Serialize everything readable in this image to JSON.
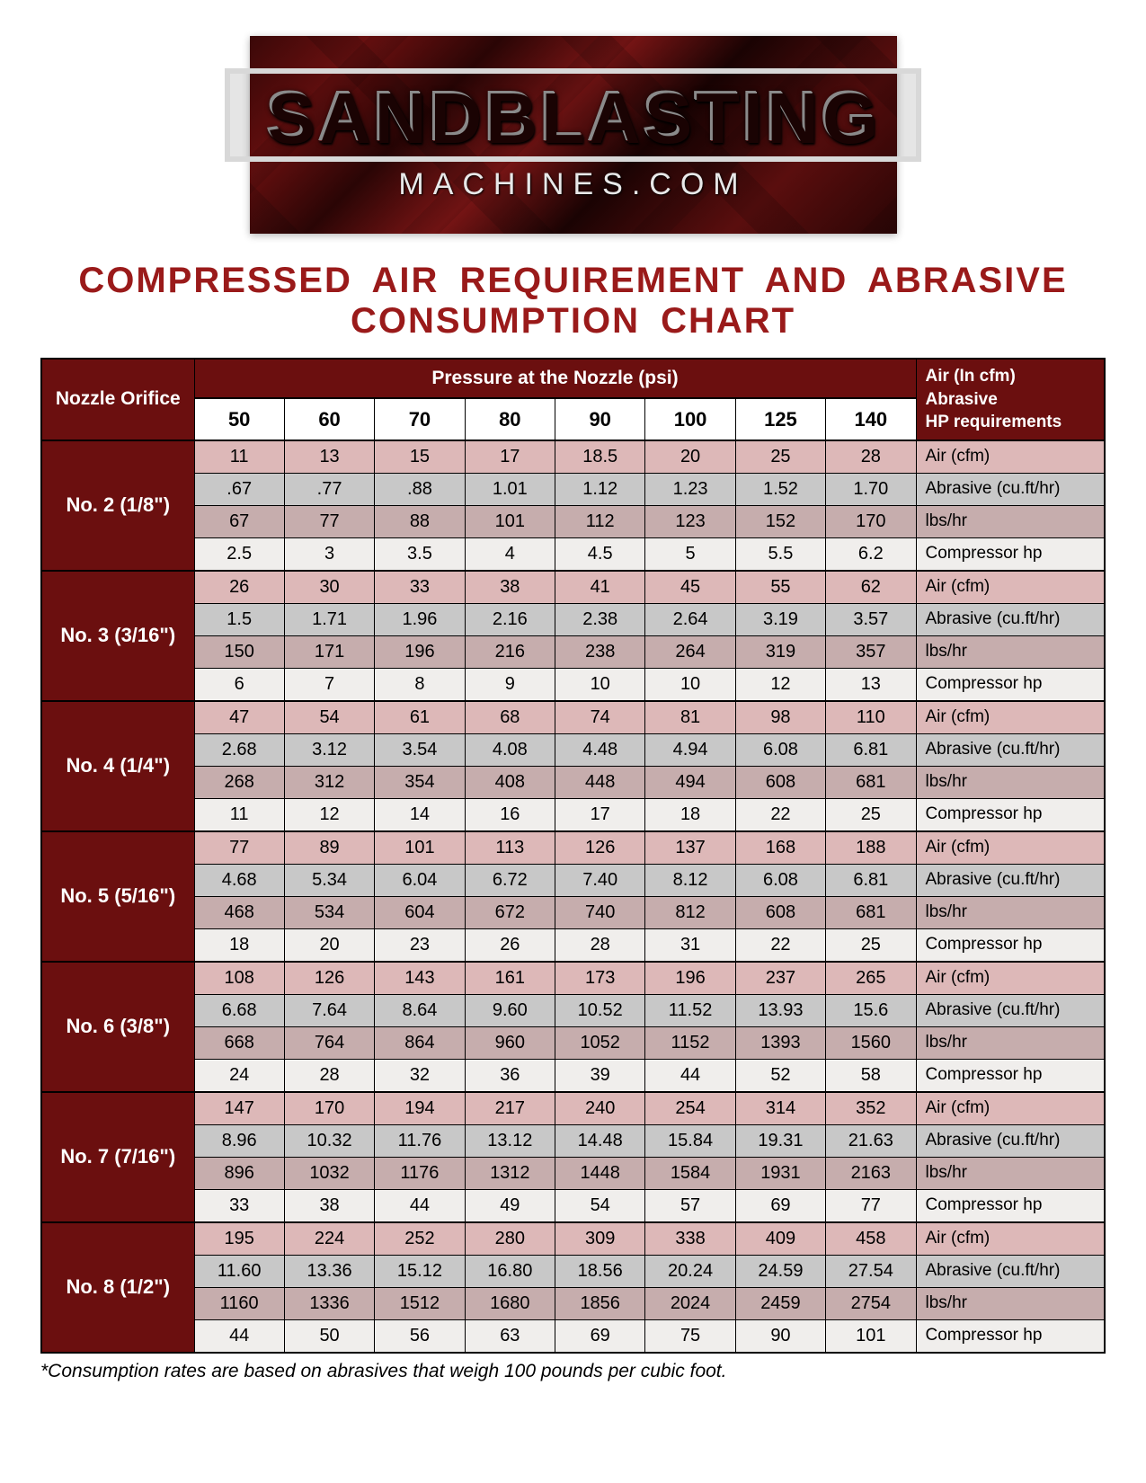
{
  "logo": {
    "title": "SANDBLASTING",
    "sub": "MACHINES.COM"
  },
  "chart_title": "COMPRESSED AIR REQUIREMENT AND ABRASIVE CONSUMPTION CHART",
  "headers": {
    "nozzle": "Nozzle Orifice",
    "pressure": "Pressure at the Nozzle (psi)",
    "right": "Air (In cfm)\nAbrasive\nHP requirements"
  },
  "psi_columns": [
    "50",
    "60",
    "70",
    "80",
    "90",
    "100",
    "125",
    "140"
  ],
  "metric_labels": [
    "Air (cfm)",
    "Abrasive (cu.ft/hr)",
    "lbs/hr",
    "Compressor hp"
  ],
  "row_colors": {
    "air": "#ddb8b8",
    "abrasive": "#c8c8c8",
    "lbs": "#c6adad",
    "hp": "#f0eeec",
    "header_bg": "#6b0f0f",
    "header_fg": "#ffffff",
    "title_color": "#9a1a1a",
    "border": "#000000"
  },
  "typography": {
    "title_font": "Impact",
    "title_size_pt": 30,
    "body_font": "Arial",
    "cell_size_pt": 15
  },
  "groups": [
    {
      "label": "No. 2 (1/8\")",
      "rows": [
        [
          "11",
          "13",
          "15",
          "17",
          "18.5",
          "20",
          "25",
          "28"
        ],
        [
          ".67",
          ".77",
          ".88",
          "1.01",
          "1.12",
          "1.23",
          "1.52",
          "1.70"
        ],
        [
          "67",
          "77",
          "88",
          "101",
          "112",
          "123",
          "152",
          "170"
        ],
        [
          "2.5",
          "3",
          "3.5",
          "4",
          "4.5",
          "5",
          "5.5",
          "6.2"
        ]
      ]
    },
    {
      "label": "No. 3 (3/16\")",
      "rows": [
        [
          "26",
          "30",
          "33",
          "38",
          "41",
          "45",
          "55",
          "62"
        ],
        [
          "1.5",
          "1.71",
          "1.96",
          "2.16",
          "2.38",
          "2.64",
          "3.19",
          "3.57"
        ],
        [
          "150",
          "171",
          "196",
          "216",
          "238",
          "264",
          "319",
          "357"
        ],
        [
          "6",
          "7",
          "8",
          "9",
          "10",
          "10",
          "12",
          "13"
        ]
      ]
    },
    {
      "label": "No. 4 (1/4\")",
      "rows": [
        [
          "47",
          "54",
          "61",
          "68",
          "74",
          "81",
          "98",
          "110"
        ],
        [
          "2.68",
          "3.12",
          "3.54",
          "4.08",
          "4.48",
          "4.94",
          "6.08",
          "6.81"
        ],
        [
          "268",
          "312",
          "354",
          "408",
          "448",
          "494",
          "608",
          "681"
        ],
        [
          "11",
          "12",
          "14",
          "16",
          "17",
          "18",
          "22",
          "25"
        ]
      ]
    },
    {
      "label": "No. 5 (5/16\")",
      "rows": [
        [
          "77",
          "89",
          "101",
          "113",
          "126",
          "137",
          "168",
          "188"
        ],
        [
          "4.68",
          "5.34",
          "6.04",
          "6.72",
          "7.40",
          "8.12",
          "6.08",
          "6.81"
        ],
        [
          "468",
          "534",
          "604",
          "672",
          "740",
          "812",
          "608",
          "681"
        ],
        [
          "18",
          "20",
          "23",
          "26",
          "28",
          "31",
          "22",
          "25"
        ]
      ]
    },
    {
      "label": "No. 6 (3/8\")",
      "rows": [
        [
          "108",
          "126",
          "143",
          "161",
          "173",
          "196",
          "237",
          "265"
        ],
        [
          "6.68",
          "7.64",
          "8.64",
          "9.60",
          "10.52",
          "11.52",
          "13.93",
          "15.6"
        ],
        [
          "668",
          "764",
          "864",
          "960",
          "1052",
          "1152",
          "1393",
          "1560"
        ],
        [
          "24",
          "28",
          "32",
          "36",
          "39",
          "44",
          "52",
          "58"
        ]
      ]
    },
    {
      "label": "No. 7 (7/16\")",
      "rows": [
        [
          "147",
          "170",
          "194",
          "217",
          "240",
          "254",
          "314",
          "352"
        ],
        [
          "8.96",
          "10.32",
          "11.76",
          "13.12",
          "14.48",
          "15.84",
          "19.31",
          "21.63"
        ],
        [
          "896",
          "1032",
          "1176",
          "1312",
          "1448",
          "1584",
          "1931",
          "2163"
        ],
        [
          "33",
          "38",
          "44",
          "49",
          "54",
          "57",
          "69",
          "77"
        ]
      ]
    },
    {
      "label": "No. 8 (1/2\")",
      "rows": [
        [
          "195",
          "224",
          "252",
          "280",
          "309",
          "338",
          "409",
          "458"
        ],
        [
          "11.60",
          "13.36",
          "15.12",
          "16.80",
          "18.56",
          "20.24",
          "24.59",
          "27.54"
        ],
        [
          "1160",
          "1336",
          "1512",
          "1680",
          "1856",
          "2024",
          "2459",
          "2754"
        ],
        [
          "44",
          "50",
          "56",
          "63",
          "69",
          "75",
          "90",
          "101"
        ]
      ]
    }
  ],
  "footnote": "*Consumption rates are based on abrasives that weigh 100 pounds per cubic foot."
}
